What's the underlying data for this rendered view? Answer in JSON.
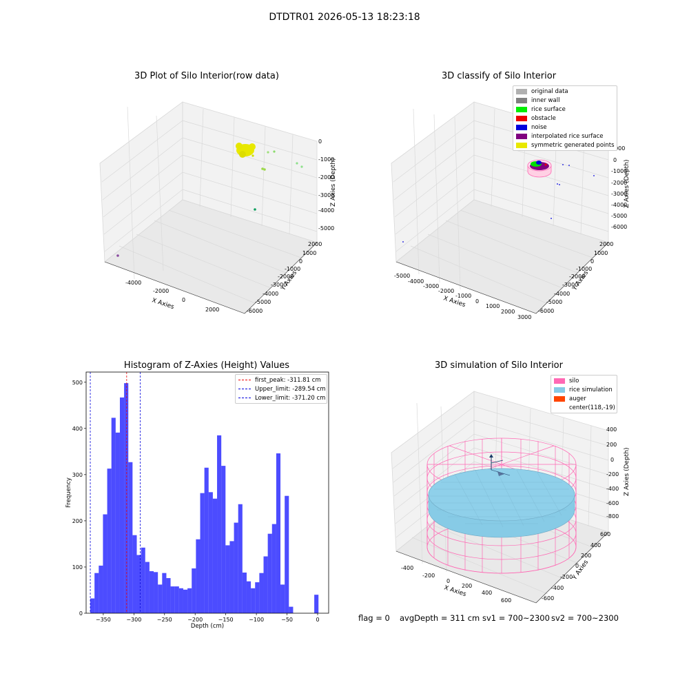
{
  "figure_title": "DTDTR01 2026-05-13 18:23:18",
  "colors": {
    "yellow": "#e8e800",
    "green": "#00ee00",
    "red": "#ee0000",
    "blue": "#0000dd",
    "purple": "#800080",
    "gray": "#b0b0b0",
    "darkgray": "#808080",
    "hist_blue": "#0000ff",
    "silo_pink": "#ff69b4",
    "rice_blue": "#87cbe6",
    "auger": "#ff4500"
  },
  "status": {
    "flag": "flag = 0",
    "avg_depth": "avgDepth = 311 cm",
    "sv1": "sv1 = 700~2300",
    "sv2": "sv2 = 700~2300"
  },
  "chart_data": [
    {
      "type": "scatter",
      "projection": "3d",
      "title": "3D Plot of Silo Interior(row data)",
      "xlabel": "X Axies",
      "ylabel": "Y Axies",
      "zlabel": "Z Axies (Depth)",
      "xticks": [
        "-4000",
        "-2000",
        "0",
        "2000"
      ],
      "yticks": [
        "2000",
        "1000",
        "0",
        "-1000",
        "-2000",
        "-3000",
        "-4000",
        "-5000",
        "-6000"
      ],
      "zticks": [
        "0",
        "-1000",
        "-2000",
        "-3000",
        "-4000",
        "-5000"
      ],
      "clusters": [
        {
          "desc": "dense surface cluster",
          "color": "yellow",
          "x": -300,
          "y": 300,
          "z": -400
        },
        {
          "desc": "scattered points",
          "color": "green",
          "x": 1000,
          "y": 300,
          "z": -1400
        },
        {
          "desc": "single point",
          "color": "green",
          "x": 0,
          "y": -1200,
          "z": -4000
        },
        {
          "desc": "single point",
          "color": "purple",
          "x": -4800,
          "y": -200,
          "z": -5500
        }
      ]
    },
    {
      "type": "scatter",
      "projection": "3d",
      "title": "3D classify of Silo Interior",
      "xlabel": "X Axies",
      "ylabel": "Y Axies",
      "zlabel": "Z Axies (Depth)",
      "xticks": [
        "-5000",
        "-4000",
        "-3000",
        "-2000",
        "-1000",
        "0",
        "1000",
        "2000",
        "3000"
      ],
      "yticks": [
        "2000",
        "1000",
        "0",
        "-1000",
        "-2000",
        "-3000",
        "-4000",
        "-5000",
        "-6000"
      ],
      "zticks": [
        "1000",
        "0",
        "-1000",
        "-2000",
        "-3000",
        "-4000",
        "-5000",
        "-6000"
      ],
      "legend": [
        {
          "label": "original data",
          "color": "gray"
        },
        {
          "label": "inner wall",
          "color": "darkgray"
        },
        {
          "label": "rice surface",
          "color": "green"
        },
        {
          "label": "obstacle",
          "color": "red"
        },
        {
          "label": "noise",
          "color": "blue"
        },
        {
          "label": "interpolated rice surface",
          "color": "purple"
        },
        {
          "label": "symmetric generated points",
          "color": "yellow"
        }
      ]
    },
    {
      "type": "bar",
      "title": "Histogram of Z-Axies (Height) Values",
      "xlabel": "Depth (cm)",
      "ylabel": "Frequency",
      "xlim": [
        -378,
        18
      ],
      "ylim": [
        0,
        522
      ],
      "xticks": [
        -350,
        -300,
        -250,
        -200,
        -150,
        -100,
        -50,
        0
      ],
      "yticks": [
        0,
        100,
        200,
        300,
        400,
        500
      ],
      "bin_width": 6.9,
      "bin_starts": [
        -371.2,
        -364.3,
        -357.4,
        -350.5,
        -343.6,
        -336.7,
        -329.8,
        -322.9,
        -316.0,
        -309.1,
        -302.2,
        -295.3,
        -288.4,
        -281.5,
        -274.6,
        -267.7,
        -260.8,
        -253.9,
        -247.0,
        -240.1,
        -233.2,
        -226.3,
        -219.4,
        -212.5,
        -205.6,
        -198.7,
        -191.8,
        -184.9,
        -178.0,
        -171.1,
        -164.2,
        -157.3,
        -150.4,
        -143.5,
        -136.6,
        -129.7,
        -122.8,
        -115.9,
        -109.0,
        -102.1,
        -95.2,
        -88.3,
        -81.4,
        -74.5,
        -67.6,
        -60.7,
        -53.8,
        -46.9,
        -40.0,
        -33.1,
        -26.2,
        -19.3,
        -12.4,
        -5.5
      ],
      "values": [
        32,
        87,
        103,
        214,
        313,
        423,
        391,
        467,
        498,
        327,
        169,
        126,
        142,
        111,
        91,
        89,
        62,
        87,
        76,
        58,
        58,
        54,
        51,
        54,
        97,
        160,
        260,
        315,
        262,
        248,
        385,
        319,
        147,
        156,
        196,
        236,
        88,
        69,
        54,
        67,
        87,
        123,
        172,
        193,
        346,
        62,
        254,
        14,
        0,
        0,
        0,
        0,
        0,
        40
      ],
      "vlines": [
        {
          "label": "first_peak: -311.81 cm",
          "x": -311.81,
          "color": "red"
        },
        {
          "label": "Upper_limit: -289.54 cm",
          "x": -289.54,
          "color": "blue"
        },
        {
          "label": "Lower_limit: -371.20 cm",
          "x": -371.2,
          "color": "blue"
        }
      ]
    },
    {
      "type": "surface",
      "projection": "3d",
      "title": "3D simulation of Silo Interior",
      "xlabel": "X Axies",
      "ylabel": "Y Axies",
      "zlabel": "Z Axies (Depth)",
      "xticks": [
        "-400",
        "-200",
        "0",
        "200",
        "400",
        "600"
      ],
      "yticks": [
        "600",
        "400",
        "200",
        "0",
        "-200",
        "-400",
        "-600"
      ],
      "zticks": [
        "400",
        "200",
        "0",
        "-200",
        "-400",
        "-600",
        "-800"
      ],
      "legend": [
        {
          "label": "silo",
          "color": "silo_pink"
        },
        {
          "label": "rice simulation",
          "color": "rice_blue"
        },
        {
          "label": "auger",
          "color": "auger"
        },
        {
          "label": "center(118,-19)",
          "color": ""
        }
      ]
    }
  ]
}
